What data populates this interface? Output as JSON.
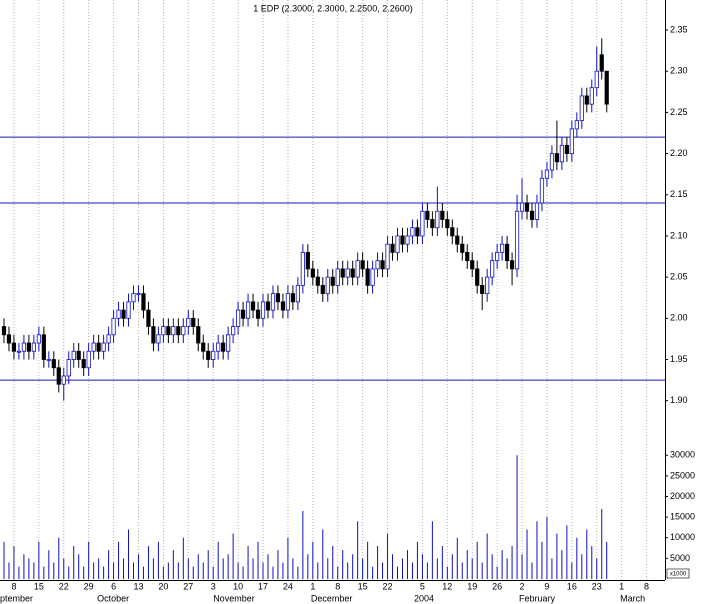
{
  "chart_data": {
    "type": "candlestick",
    "title": "1 EDP (2.3000, 2.3000, 2.2500, 2.2600)",
    "up_color": "#1010c0",
    "down_color": "#000000",
    "volume_color": "#1010c0",
    "line_color": "#1818b8",
    "volume_unit": "x1000",
    "xlim": [
      -2.8,
      130.7
    ],
    "ylim": [
      1.87,
      2.385
    ],
    "y2lim": [
      0,
      32000
    ],
    "hlines": [
      2.22,
      2.14,
      1.925
    ],
    "yticks": [
      {
        "value": 1.9,
        "label": "1.90"
      },
      {
        "value": 1.95,
        "label": "1.95"
      },
      {
        "value": 2.0,
        "label": "2.00"
      },
      {
        "value": 2.05,
        "label": "2.05"
      },
      {
        "value": 2.1,
        "label": "2.10"
      },
      {
        "value": 2.15,
        "label": "2.15"
      },
      {
        "value": 2.2,
        "label": "2.20"
      },
      {
        "value": 2.25,
        "label": "2.25"
      },
      {
        "value": 2.3,
        "label": "2.30"
      },
      {
        "value": 2.35,
        "label": "2.35"
      }
    ],
    "y2ticks": [
      5000,
      10000,
      15000,
      20000,
      25000,
      30000
    ],
    "xticks": [
      {
        "value": 0,
        "label": "8"
      },
      {
        "value": 5,
        "label": "15"
      },
      {
        "value": 10,
        "label": "22"
      },
      {
        "value": 15,
        "label": "29"
      },
      {
        "value": 20,
        "label": "6"
      },
      {
        "value": 25,
        "label": "13"
      },
      {
        "value": 30,
        "label": "20"
      },
      {
        "value": 35,
        "label": "27"
      },
      {
        "value": 40,
        "label": "3"
      },
      {
        "value": 45,
        "label": "10"
      },
      {
        "value": 50,
        "label": "17"
      },
      {
        "value": 55,
        "label": "24"
      },
      {
        "value": 60,
        "label": "1"
      },
      {
        "value": 65,
        "label": "8"
      },
      {
        "value": 70,
        "label": "15"
      },
      {
        "value": 75,
        "label": "22"
      },
      {
        "value": 82,
        "label": "5"
      },
      {
        "value": 87,
        "label": "12"
      },
      {
        "value": 92,
        "label": "19"
      },
      {
        "value": 97,
        "label": "26"
      },
      {
        "value": 102,
        "label": "2"
      },
      {
        "value": 107,
        "label": "9"
      },
      {
        "value": 112,
        "label": "16"
      },
      {
        "value": 117,
        "label": "23"
      },
      {
        "value": 122,
        "label": "1"
      },
      {
        "value": 127,
        "label": "8"
      }
    ],
    "month_ticks": [
      {
        "value": -2.8,
        "label": "ptember"
      },
      {
        "value": 16.7,
        "label": "October"
      },
      {
        "value": 40,
        "label": "November"
      },
      {
        "value": 59.6,
        "label": "December"
      },
      {
        "value": 80.3,
        "label": "2004"
      },
      {
        "value": 101.4,
        "label": "February"
      },
      {
        "value": 121.7,
        "label": "March"
      }
    ],
    "x": [
      -2,
      -1,
      0,
      1,
      2,
      3,
      4,
      5,
      6,
      7,
      8,
      9,
      10,
      11,
      12,
      13,
      14,
      15,
      16,
      17,
      18,
      19,
      20,
      21,
      22,
      23,
      24,
      25,
      26,
      27,
      28,
      29,
      30,
      31,
      32,
      33,
      34,
      35,
      36,
      37,
      38,
      39,
      40,
      41,
      42,
      43,
      44,
      45,
      46,
      47,
      48,
      49,
      50,
      51,
      52,
      53,
      54,
      55,
      56,
      57,
      58,
      59,
      60,
      61,
      62,
      63,
      64,
      65,
      66,
      67,
      68,
      69,
      70,
      71,
      72,
      73,
      74,
      75,
      76,
      77,
      78,
      79,
      80,
      81,
      82,
      83,
      84,
      85,
      86,
      87,
      88,
      89,
      90,
      91,
      92,
      93,
      94,
      95,
      96,
      97,
      98,
      99,
      100,
      101,
      102,
      103,
      104,
      105,
      106,
      107,
      108,
      109,
      110,
      111,
      112,
      113,
      114,
      115,
      116,
      117,
      118,
      119
    ],
    "candles": [
      [
        1.99,
        2.0,
        1.97,
        1.98
      ],
      [
        1.98,
        1.99,
        1.96,
        1.97
      ],
      [
        1.97,
        1.98,
        1.95,
        1.96
      ],
      [
        1.96,
        1.97,
        1.95,
        1.96
      ],
      [
        1.96,
        1.98,
        1.95,
        1.97
      ],
      [
        1.97,
        1.98,
        1.95,
        1.96
      ],
      [
        1.96,
        1.98,
        1.95,
        1.97
      ],
      [
        1.97,
        1.99,
        1.96,
        1.98
      ],
      [
        1.98,
        1.99,
        1.94,
        1.95
      ],
      [
        1.95,
        1.96,
        1.94,
        1.95
      ],
      [
        1.95,
        1.96,
        1.93,
        1.94
      ],
      [
        1.94,
        1.95,
        1.91,
        1.92
      ],
      [
        1.92,
        1.94,
        1.9,
        1.93
      ],
      [
        1.93,
        1.96,
        1.92,
        1.95
      ],
      [
        1.95,
        1.97,
        1.94,
        1.96
      ],
      [
        1.96,
        1.97,
        1.94,
        1.95
      ],
      [
        1.95,
        1.96,
        1.93,
        1.94
      ],
      [
        1.94,
        1.97,
        1.93,
        1.96
      ],
      [
        1.96,
        1.98,
        1.95,
        1.97
      ],
      [
        1.97,
        1.98,
        1.95,
        1.96
      ],
      [
        1.96,
        1.98,
        1.95,
        1.97
      ],
      [
        1.97,
        1.99,
        1.96,
        1.98
      ],
      [
        1.98,
        2.01,
        1.97,
        2.0
      ],
      [
        2.0,
        2.02,
        1.99,
        2.01
      ],
      [
        2.01,
        2.02,
        1.99,
        2.0
      ],
      [
        2.0,
        2.03,
        1.99,
        2.02
      ],
      [
        2.02,
        2.04,
        2.01,
        2.03
      ],
      [
        2.03,
        2.04,
        2.02,
        2.03
      ],
      [
        2.03,
        2.04,
        2.0,
        2.01
      ],
      [
        2.01,
        2.02,
        1.98,
        1.99
      ],
      [
        1.99,
        2.0,
        1.96,
        1.97
      ],
      [
        1.97,
        1.99,
        1.96,
        1.98
      ],
      [
        1.98,
        2.0,
        1.97,
        1.99
      ],
      [
        1.99,
        2.0,
        1.97,
        1.98
      ],
      [
        1.98,
        2.0,
        1.97,
        1.99
      ],
      [
        1.99,
        2.0,
        1.97,
        1.98
      ],
      [
        1.98,
        2.0,
        1.97,
        1.99
      ],
      [
        1.99,
        2.01,
        1.98,
        2.0
      ],
      [
        2.0,
        2.01,
        1.98,
        1.99
      ],
      [
        1.99,
        2.0,
        1.96,
        1.97
      ],
      [
        1.97,
        1.98,
        1.95,
        1.96
      ],
      [
        1.96,
        1.97,
        1.94,
        1.95
      ],
      [
        1.95,
        1.97,
        1.94,
        1.96
      ],
      [
        1.96,
        1.98,
        1.95,
        1.97
      ],
      [
        1.97,
        1.98,
        1.95,
        1.96
      ],
      [
        1.96,
        1.99,
        1.95,
        1.98
      ],
      [
        1.98,
        2.0,
        1.97,
        1.99
      ],
      [
        1.99,
        2.02,
        1.98,
        2.01
      ],
      [
        2.01,
        2.02,
        1.99,
        2.0
      ],
      [
        2.0,
        2.03,
        1.99,
        2.02
      ],
      [
        2.02,
        2.03,
        2.0,
        2.01
      ],
      [
        2.01,
        2.02,
        1.99,
        2.0
      ],
      [
        2.0,
        2.03,
        1.99,
        2.02
      ],
      [
        2.02,
        2.03,
        2.0,
        2.01
      ],
      [
        2.01,
        2.04,
        2.0,
        2.03
      ],
      [
        2.03,
        2.04,
        2.01,
        2.02
      ],
      [
        2.02,
        2.03,
        2.0,
        2.01
      ],
      [
        2.01,
        2.04,
        2.0,
        2.03
      ],
      [
        2.03,
        2.04,
        2.01,
        2.02
      ],
      [
        2.02,
        2.05,
        2.01,
        2.04
      ],
      [
        2.04,
        2.09,
        2.03,
        2.08
      ],
      [
        2.08,
        2.09,
        2.05,
        2.06
      ],
      [
        2.06,
        2.07,
        2.04,
        2.05
      ],
      [
        2.05,
        2.06,
        2.03,
        2.04
      ],
      [
        2.04,
        2.05,
        2.02,
        2.03
      ],
      [
        2.03,
        2.06,
        2.02,
        2.05
      ],
      [
        2.05,
        2.06,
        2.03,
        2.04
      ],
      [
        2.04,
        2.07,
        2.03,
        2.06
      ],
      [
        2.06,
        2.07,
        2.04,
        2.05
      ],
      [
        2.05,
        2.07,
        2.04,
        2.06
      ],
      [
        2.06,
        2.07,
        2.04,
        2.05
      ],
      [
        2.05,
        2.08,
        2.04,
        2.07
      ],
      [
        2.07,
        2.08,
        2.05,
        2.06
      ],
      [
        2.06,
        2.07,
        2.03,
        2.04
      ],
      [
        2.04,
        2.07,
        2.03,
        2.06
      ],
      [
        2.06,
        2.08,
        2.05,
        2.07
      ],
      [
        2.07,
        2.08,
        2.05,
        2.06
      ],
      [
        2.06,
        2.1,
        2.05,
        2.09
      ],
      [
        2.09,
        2.1,
        2.07,
        2.08
      ],
      [
        2.08,
        2.11,
        2.07,
        2.1
      ],
      [
        2.1,
        2.11,
        2.08,
        2.09
      ],
      [
        2.09,
        2.11,
        2.08,
        2.1
      ],
      [
        2.1,
        2.12,
        2.09,
        2.11
      ],
      [
        2.11,
        2.12,
        2.09,
        2.1
      ],
      [
        2.1,
        2.14,
        2.09,
        2.13
      ],
      [
        2.13,
        2.14,
        2.11,
        2.12
      ],
      [
        2.12,
        2.13,
        2.1,
        2.11
      ],
      [
        2.11,
        2.16,
        2.1,
        2.13
      ],
      [
        2.13,
        2.14,
        2.11,
        2.12
      ],
      [
        2.12,
        2.13,
        2.1,
        2.11
      ],
      [
        2.11,
        2.12,
        2.09,
        2.1
      ],
      [
        2.1,
        2.11,
        2.08,
        2.09
      ],
      [
        2.09,
        2.1,
        2.07,
        2.08
      ],
      [
        2.08,
        2.09,
        2.06,
        2.07
      ],
      [
        2.07,
        2.08,
        2.05,
        2.06
      ],
      [
        2.06,
        2.07,
        2.03,
        2.04
      ],
      [
        2.04,
        2.05,
        2.01,
        2.03
      ],
      [
        2.03,
        2.06,
        2.02,
        2.05
      ],
      [
        2.05,
        2.08,
        2.04,
        2.07
      ],
      [
        2.07,
        2.09,
        2.06,
        2.08
      ],
      [
        2.08,
        2.1,
        2.07,
        2.09
      ],
      [
        2.09,
        2.1,
        2.06,
        2.07
      ],
      [
        2.07,
        2.08,
        2.04,
        2.06
      ],
      [
        2.06,
        2.15,
        2.05,
        2.13
      ],
      [
        2.13,
        2.17,
        2.12,
        2.14
      ],
      [
        2.14,
        2.15,
        2.12,
        2.13
      ],
      [
        2.13,
        2.14,
        2.11,
        2.12
      ],
      [
        2.12,
        2.15,
        2.11,
        2.14
      ],
      [
        2.14,
        2.18,
        2.13,
        2.17
      ],
      [
        2.17,
        2.19,
        2.16,
        2.18
      ],
      [
        2.18,
        2.21,
        2.17,
        2.2
      ],
      [
        2.2,
        2.24,
        2.18,
        2.19
      ],
      [
        2.19,
        2.22,
        2.18,
        2.21
      ],
      [
        2.21,
        2.22,
        2.19,
        2.2
      ],
      [
        2.2,
        2.24,
        2.19,
        2.23
      ],
      [
        2.23,
        2.25,
        2.22,
        2.24
      ],
      [
        2.24,
        2.28,
        2.23,
        2.27
      ],
      [
        2.27,
        2.28,
        2.25,
        2.26
      ],
      [
        2.26,
        2.29,
        2.25,
        2.28
      ],
      [
        2.28,
        2.33,
        2.27,
        2.3
      ],
      [
        2.32,
        2.34,
        2.29,
        2.3
      ],
      [
        2.3,
        2.3,
        2.25,
        2.26
      ]
    ],
    "volume": [
      9000,
      4000,
      8000,
      3000,
      6000,
      5000,
      4000,
      9000,
      3000,
      7000,
      4000,
      10000,
      5000,
      3000,
      8000,
      6000,
      3000,
      9000,
      4000,
      5000,
      3000,
      7000,
      4000,
      9000,
      5000,
      12000,
      4000,
      6000,
      3000,
      8000,
      5000,
      9000,
      3000,
      4000,
      7000,
      4000,
      10000,
      5000,
      3000,
      6000,
      4000,
      7000,
      3000,
      9000,
      5000,
      6000,
      11000,
      4000,
      3000,
      8000,
      5000,
      9000,
      4000,
      6000,
      3000,
      7000,
      4000,
      10000,
      5000,
      3000,
      16500,
      6000,
      9000,
      4000,
      12000,
      5000,
      8000,
      3000,
      7000,
      4000,
      6000,
      14000,
      5000,
      9000,
      3000,
      8000,
      4000,
      11000,
      6000,
      3000,
      5000,
      7000,
      4000,
      9000,
      6000,
      4000,
      14000,
      5000,
      8000,
      3000,
      6000,
      10000,
      4000,
      7000,
      5000,
      9000,
      4000,
      11000,
      6000,
      3000,
      7000,
      5000,
      8000,
      30000,
      6000,
      12000,
      4000,
      14000,
      9000,
      15000,
      5000,
      11000,
      7000,
      13000,
      4000,
      10000,
      6000,
      12000,
      8000,
      5000,
      17000,
      9000
    ]
  }
}
